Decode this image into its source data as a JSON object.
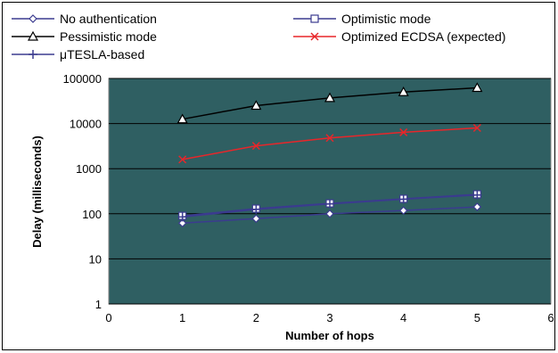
{
  "chart_data": {
    "type": "line",
    "xlabel": "Number of hops",
    "ylabel": "Delay (milliseconds)",
    "xlim": [
      0,
      6
    ],
    "xticks": [
      "0",
      "1",
      "2",
      "3",
      "4",
      "5",
      "6"
    ],
    "ylim": [
      1,
      100000
    ],
    "yscale": "log",
    "yticks": [
      "1",
      "10",
      "100",
      "1000",
      "10000",
      "100000"
    ],
    "grid": "horizontal",
    "plot_background": "#2f5f62",
    "legend_position": "top",
    "x": [
      1,
      2,
      3,
      4,
      5
    ],
    "series": [
      {
        "name": "No authentication",
        "marker": "diamond",
        "color": "#3b3b8f",
        "values": [
          62,
          78,
          100,
          118,
          142
        ]
      },
      {
        "name": "Optimistic mode",
        "marker": "square",
        "color": "#3b3b8f",
        "values": [
          90,
          130,
          170,
          215,
          270
        ]
      },
      {
        "name": "Pessimistic mode",
        "marker": "triangle",
        "color": "#000000",
        "values": [
          12500,
          25000,
          37000,
          50000,
          62000
        ]
      },
      {
        "name": "Optimized ECDSA (expected)",
        "marker": "x",
        "color": "#e8262a",
        "values": [
          1600,
          3200,
          4800,
          6400,
          8000
        ]
      },
      {
        "name": "μTESLA-based",
        "marker": "plus",
        "color": "#3b3b8f",
        "values": [
          85,
          125,
          165,
          210,
          260
        ]
      }
    ]
  }
}
